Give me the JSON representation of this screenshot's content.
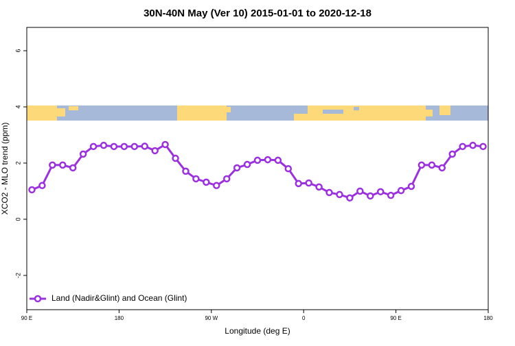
{
  "chart_data": {
    "type": "line",
    "title": "30N-40N May (Ver 10)   2015-01-01 to 2020-12-18",
    "x_label": "Longitude (deg E)",
    "y_label": "XCO2 - MLO trend (ppm)",
    "x": [
      95,
      105,
      115,
      125,
      135,
      145,
      155,
      165,
      175,
      185,
      195,
      205,
      215,
      225,
      235,
      245,
      255,
      265,
      275,
      285,
      295,
      305,
      315,
      325,
      335,
      345,
      355,
      365,
      375,
      385,
      395,
      405,
      415,
      425,
      435,
      445,
      455,
      465,
      475,
      485,
      495,
      505,
      515,
      525,
      535
    ],
    "series": [
      {
        "name": "Land (Nadir&Glint) and Ocean (Glint)",
        "color": "#9b30e0",
        "values": [
          1.05,
          1.2,
          1.93,
          1.93,
          1.83,
          2.32,
          2.59,
          2.63,
          2.59,
          2.59,
          2.59,
          2.6,
          2.44,
          2.66,
          2.17,
          1.71,
          1.44,
          1.32,
          1.2,
          1.44,
          1.83,
          1.95,
          2.1,
          2.12,
          2.1,
          1.8,
          1.27,
          1.29,
          1.15,
          0.95,
          0.88,
          0.76,
          1.0,
          0.83,
          0.98,
          0.85,
          1.02,
          1.17,
          1.93,
          1.93,
          1.83,
          2.32,
          2.59,
          2.63,
          2.59
        ]
      }
    ],
    "xlim": [
      90,
      540
    ],
    "xticks": [
      {
        "value": 90,
        "label": "90 E"
      },
      180,
      {
        "value": 270,
        "label": "90 W"
      },
      {
        "value": 360,
        "label": "0"
      },
      {
        "value": 450,
        "label": "90 E"
      },
      {
        "value": 540,
        "label": "180"
      }
    ],
    "ylim": [
      -3.22,
      6.83
    ],
    "yticks": [
      -2,
      0,
      2,
      4,
      6
    ],
    "legend": "bottom-left"
  }
}
